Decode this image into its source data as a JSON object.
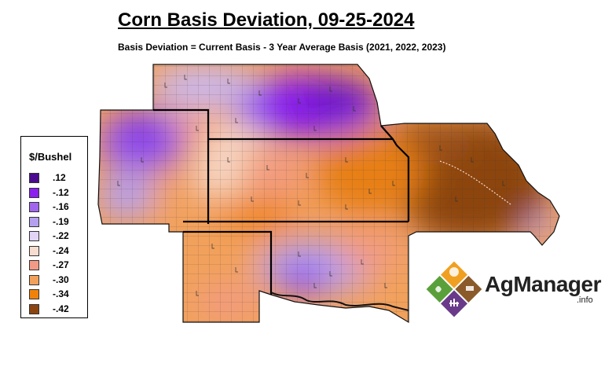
{
  "title": "Corn Basis Deviation, 09-25-2024",
  "subtitle": "Basis Deviation = Current Basis - 3 Year Average Basis (2021, 2022, 2023)",
  "legend": {
    "title": "$/Bushel",
    "items": [
      {
        "label": ".12",
        "color": "#4b0a8f"
      },
      {
        "label": "-.12",
        "color": "#8a1ff0"
      },
      {
        "label": "-.16",
        "color": "#a265ee"
      },
      {
        "label": "-.19",
        "color": "#b5a0f0"
      },
      {
        "label": "-.22",
        "color": "#e2d4f7"
      },
      {
        "label": "-.24",
        "color": "#f7dcd0"
      },
      {
        "label": "-.27",
        "color": "#f29a86"
      },
      {
        "label": "-.30",
        "color": "#f2a15c"
      },
      {
        "label": "-.34",
        "color": "#f0820a"
      },
      {
        "label": "-.42",
        "color": "#8c4510"
      }
    ]
  },
  "logo": {
    "name": "AgManager",
    "suffix": ".info",
    "colors": [
      "#f0a020",
      "#8a5a2a",
      "#6a3a8a",
      "#5aa03a"
    ]
  }
}
